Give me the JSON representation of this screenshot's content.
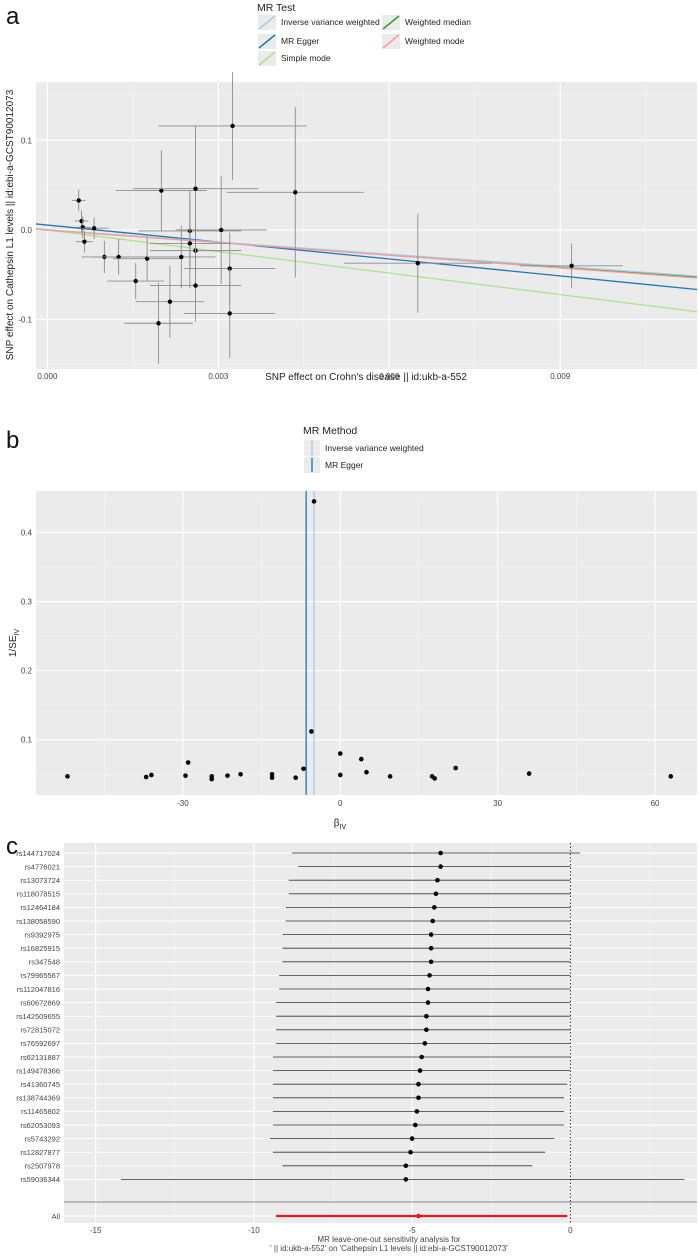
{
  "chart_data": [
    {
      "panel": "a",
      "type": "scatter",
      "xlabel": "SNP effect on Crohn's disease || id:ukb-a-552",
      "ylabel": "SNP effect on Cathepsin L1 levels || id:ebi-a-GCST90012073",
      "xlim": [
        -0.0002,
        0.0114
      ],
      "ylim": [
        -0.155,
        0.165
      ],
      "xticks": [
        0.0,
        0.003,
        0.006,
        0.009
      ],
      "xtick_labels": [
        "0.000",
        "0.003",
        "0.006",
        "0.009"
      ],
      "yticks": [
        -0.1,
        0.0,
        0.1
      ],
      "ytick_labels": [
        "-0.1",
        "0.0",
        "0.1"
      ],
      "legend_title": "MR Test",
      "legend": [
        {
          "name": "Inverse variance weighted",
          "color": "#a6cee3"
        },
        {
          "name": "Weighted median",
          "color": "#33a02c"
        },
        {
          "name": "MR Egger",
          "color": "#1f78b4"
        },
        {
          "name": "Weighted mode",
          "color": "#fb9a99"
        },
        {
          "name": "Simple mode",
          "color": "#b2df8a"
        }
      ],
      "points": [
        {
          "x": 0.00055,
          "y": 0.033,
          "xe": 0.00012,
          "ye": 0.012
        },
        {
          "x": 0.0006,
          "y": 0.01,
          "xe": 0.00012,
          "ye": 0.012
        },
        {
          "x": 0.00062,
          "y": 0.003,
          "xe": 0.00014,
          "ye": 0.012
        },
        {
          "x": 0.00065,
          "y": -0.013,
          "xe": 0.00015,
          "ye": 0.012
        },
        {
          "x": 0.00082,
          "y": 0.002,
          "xe": 0.00025,
          "ye": 0.012
        },
        {
          "x": 0.001,
          "y": -0.03,
          "xe": 0.0004,
          "ye": 0.018
        },
        {
          "x": 0.00125,
          "y": -0.03,
          "xe": 0.0005,
          "ye": 0.02
        },
        {
          "x": 0.00155,
          "y": -0.057,
          "xe": 0.0005,
          "ye": 0.02
        },
        {
          "x": 0.00175,
          "y": -0.032,
          "xe": 0.0006,
          "ye": 0.025
        },
        {
          "x": 0.00195,
          "y": -0.104,
          "xe": 0.0006,
          "ye": 0.045
        },
        {
          "x": 0.002,
          "y": 0.044,
          "xe": 0.0008,
          "ye": 0.045
        },
        {
          "x": 0.00215,
          "y": -0.08,
          "xe": 0.0006,
          "ye": 0.04
        },
        {
          "x": 0.00235,
          "y": -0.03,
          "xe": 0.0006,
          "ye": 0.035
        },
        {
          "x": 0.0025,
          "y": -0.001,
          "xe": 0.0009,
          "ye": 0.045
        },
        {
          "x": 0.0025,
          "y": -0.015,
          "xe": 0.0007,
          "ye": 0.05
        },
        {
          "x": 0.0026,
          "y": -0.023,
          "xe": 0.0008,
          "ye": 0.04
        },
        {
          "x": 0.0026,
          "y": -0.062,
          "xe": 0.0008,
          "ye": 0.04
        },
        {
          "x": 0.0026,
          "y": 0.046,
          "xe": 0.0011,
          "ye": 0.07
        },
        {
          "x": 0.00305,
          "y": 0.0,
          "xe": 0.0008,
          "ye": 0.06
        },
        {
          "x": 0.0032,
          "y": -0.043,
          "xe": 0.0008,
          "ye": 0.04
        },
        {
          "x": 0.0032,
          "y": -0.093,
          "xe": 0.0008,
          "ye": 0.05
        },
        {
          "x": 0.00325,
          "y": 0.116,
          "xe": 0.0013,
          "ye": 0.06
        },
        {
          "x": 0.00435,
          "y": 0.042,
          "xe": 0.0012,
          "ye": 0.095
        },
        {
          "x": 0.0065,
          "y": -0.037,
          "xe": 0.0013,
          "ye": 0.055
        },
        {
          "x": 0.0092,
          "y": -0.04,
          "xe": 0.0009,
          "ye": 0.025
        }
      ],
      "lines": [
        {
          "name": "MR Egger",
          "intercept": 0.0055,
          "slope": -6.3
        },
        {
          "name": "Inverse variance weighted",
          "intercept": 0.0,
          "slope": -4.5
        },
        {
          "name": "Weighted median",
          "intercept": 0.0,
          "slope": -4.6
        },
        {
          "name": "Weighted mode",
          "intercept": 0.0,
          "slope": -4.7
        },
        {
          "name": "Simple mode",
          "intercept": 0.0,
          "slope": -8.0
        }
      ]
    },
    {
      "panel": "b",
      "type": "scatter",
      "xlabel": "βIV",
      "xlabel_main": "β",
      "xlabel_sub": "IV",
      "ylabel": "1/SEIV",
      "ylabel_main": "1/SE",
      "ylabel_sub": "IV",
      "xlim": [
        -58,
        68
      ],
      "ylim": [
        0.02,
        0.46
      ],
      "xticks": [
        -30,
        0,
        30,
        60
      ],
      "xtick_labels": [
        "-30",
        "0",
        "30",
        "60"
      ],
      "yticks": [
        0.1,
        0.2,
        0.3,
        0.4
      ],
      "ytick_labels": [
        "0.1",
        "0.2",
        "0.3",
        "0.4"
      ],
      "legend_title": "MR Method",
      "legend": [
        {
          "name": "Inverse variance weighted",
          "color": "#a6cee3"
        },
        {
          "name": "MR Egger",
          "color": "#1f78b4"
        }
      ],
      "vlines": [
        {
          "name": "Inverse variance weighted",
          "x": -5,
          "color": "#a6cee3"
        },
        {
          "name": "MR Egger",
          "x": -6.5,
          "color": "#1f78b4"
        }
      ],
      "points": [
        {
          "x": -5,
          "y": 0.445
        },
        {
          "x": -5.5,
          "y": 0.112
        },
        {
          "x": 0,
          "y": 0.08
        },
        {
          "x": -29,
          "y": 0.067
        },
        {
          "x": 4,
          "y": 0.072
        },
        {
          "x": -7,
          "y": 0.058
        },
        {
          "x": 22,
          "y": 0.059
        },
        {
          "x": -52,
          "y": 0.047
        },
        {
          "x": -37,
          "y": 0.046
        },
        {
          "x": -36,
          "y": 0.049
        },
        {
          "x": -29.5,
          "y": 0.048
        },
        {
          "x": -24.5,
          "y": 0.047
        },
        {
          "x": -24.5,
          "y": 0.043
        },
        {
          "x": -21.5,
          "y": 0.048
        },
        {
          "x": -19,
          "y": 0.05
        },
        {
          "x": -13,
          "y": 0.05
        },
        {
          "x": -13,
          "y": 0.045
        },
        {
          "x": -8.5,
          "y": 0.045
        },
        {
          "x": 0,
          "y": 0.049
        },
        {
          "x": 5,
          "y": 0.053
        },
        {
          "x": 9.5,
          "y": 0.047
        },
        {
          "x": 17.5,
          "y": 0.047
        },
        {
          "x": 18,
          "y": 0.044
        },
        {
          "x": 36,
          "y": 0.051
        },
        {
          "x": 63,
          "y": 0.047
        }
      ]
    },
    {
      "panel": "c",
      "type": "forest",
      "xlabel": "MR leave-one-out sensitivity analysis for\n'  || id:ukb-a-552' on 'Cathepsin L1 levels || id:ebi-a-GCST90012073'",
      "xlabel_line1": "MR leave-one-out sensitivity analysis for",
      "xlabel_line2": "'  || id:ukb-a-552' on 'Cathepsin L1 levels || id:ebi-a-GCST90012073'",
      "xlim": [
        -16,
        4
      ],
      "xticks": [
        -15,
        -10,
        -5,
        0
      ],
      "xtick_labels": [
        "-15",
        "-10",
        "-5",
        "0"
      ],
      "rows": [
        {
          "label": "rs144717024",
          "est": -4.1,
          "lo": -8.8,
          "hi": 0.3
        },
        {
          "label": "rs4776021",
          "est": -4.1,
          "lo": -8.6,
          "hi": 0.0
        },
        {
          "label": "rs13073724",
          "est": -4.2,
          "lo": -8.9,
          "hi": 0.0
        },
        {
          "label": "rs118078515",
          "est": -4.25,
          "lo": -8.9,
          "hi": 0.0
        },
        {
          "label": "rs12464184",
          "est": -4.3,
          "lo": -9.0,
          "hi": 0.0
        },
        {
          "label": "rs138058590",
          "est": -4.35,
          "lo": -9.0,
          "hi": 0.0
        },
        {
          "label": "rs9392975",
          "est": -4.4,
          "lo": -9.1,
          "hi": 0.0
        },
        {
          "label": "rs16825915",
          "est": -4.4,
          "lo": -9.1,
          "hi": 0.0
        },
        {
          "label": "rs347548",
          "est": -4.4,
          "lo": -9.1,
          "hi": 0.0
        },
        {
          "label": "rs79965567",
          "est": -4.45,
          "lo": -9.2,
          "hi": 0.0
        },
        {
          "label": "rs112047816",
          "est": -4.5,
          "lo": -9.2,
          "hi": 0.0
        },
        {
          "label": "rs60672869",
          "est": -4.5,
          "lo": -9.3,
          "hi": 0.0
        },
        {
          "label": "rs142509655",
          "est": -4.55,
          "lo": -9.3,
          "hi": 0.0
        },
        {
          "label": "rs72815072",
          "est": -4.55,
          "lo": -9.3,
          "hi": 0.0
        },
        {
          "label": "rs76592697",
          "est": -4.6,
          "lo": -9.3,
          "hi": 0.0
        },
        {
          "label": "rs62131887",
          "est": -4.7,
          "lo": -9.4,
          "hi": 0.0
        },
        {
          "label": "rs149478366",
          "est": -4.75,
          "lo": -9.4,
          "hi": 0.0
        },
        {
          "label": "rs41360745",
          "est": -4.8,
          "lo": -9.4,
          "hi": -0.1
        },
        {
          "label": "rs138744369",
          "est": -4.8,
          "lo": -9.4,
          "hi": -0.2
        },
        {
          "label": "rs11465802",
          "est": -4.85,
          "lo": -9.4,
          "hi": -0.2
        },
        {
          "label": "rs62053093",
          "est": -4.9,
          "lo": -9.4,
          "hi": -0.2
        },
        {
          "label": "rs5743292",
          "est": -5.0,
          "lo": -9.5,
          "hi": -0.5
        },
        {
          "label": "rs12827877",
          "est": -5.05,
          "lo": -9.4,
          "hi": -0.8
        },
        {
          "label": "rs2507978",
          "est": -5.2,
          "lo": -9.1,
          "hi": -1.2
        },
        {
          "label": "rs59036344",
          "est": -5.2,
          "lo": -14.2,
          "hi": 3.6
        }
      ],
      "overall": {
        "label": "All",
        "est": -4.8,
        "lo": -9.3,
        "hi": -0.1
      }
    }
  ],
  "panel_labels": {
    "a": "a",
    "b": "b",
    "c": "c"
  }
}
